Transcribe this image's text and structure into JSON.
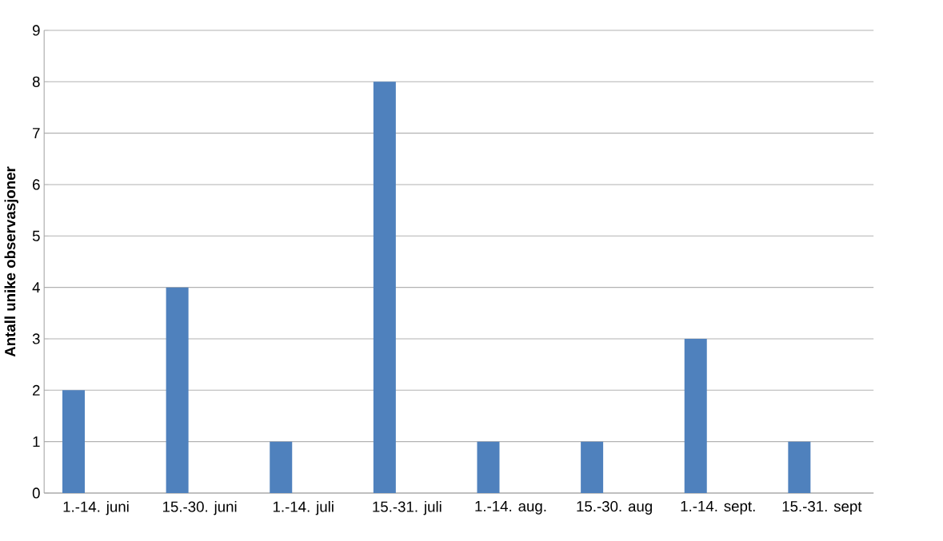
{
  "chart_data": {
    "type": "bar",
    "ylabel": "Antall unike observasjoner",
    "categories": [
      "1.-14. juni",
      "15.-30. juni",
      "1.-14. juli",
      "15.-31. juli",
      "1.-14. aug.",
      "15.-30. aug",
      "1.-14. sept.",
      "15.-31. sept"
    ],
    "values": [
      2,
      4,
      1,
      8,
      1,
      1,
      3,
      1
    ],
    "color": "#4f81bd",
    "ylim": [
      0,
      9
    ],
    "yticks": [
      0,
      1,
      2,
      3,
      4,
      5,
      6,
      7,
      8,
      9
    ],
    "grid": "y"
  }
}
